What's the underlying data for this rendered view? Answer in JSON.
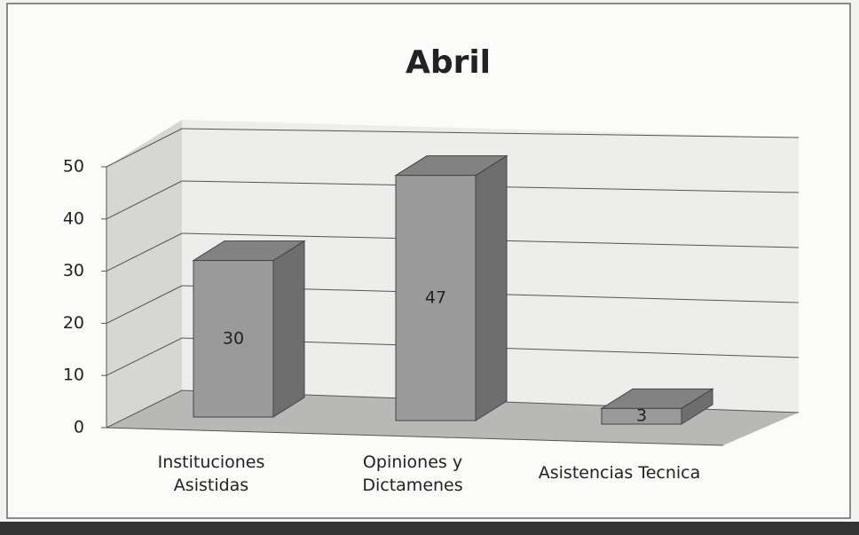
{
  "chart_data": {
    "type": "bar3d",
    "title": "Abril",
    "categories": [
      "Instituciones Asistidas",
      "Opiniones y Dictamenes",
      "Asistencias Tecnica"
    ],
    "values": [
      30,
      47,
      3
    ],
    "color": "#9a9a9a",
    "ylim": [
      0,
      50
    ],
    "yticks": [
      0,
      10,
      20,
      30,
      40,
      50
    ],
    "grid": true
  }
}
